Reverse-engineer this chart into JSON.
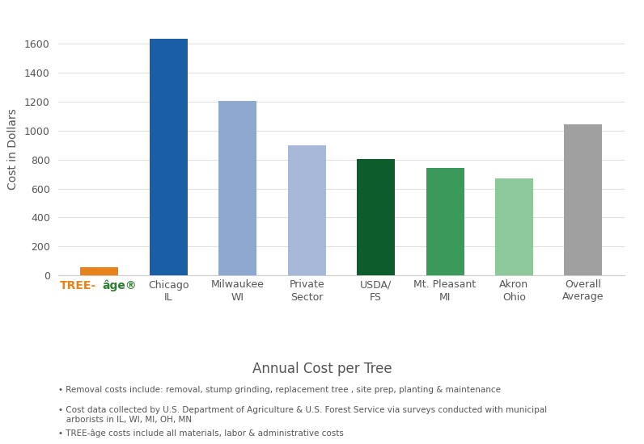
{
  "categories": [
    "TREE-âge®",
    "Chicago\nIL",
    "Milwaukee\nWI",
    "Private\nSector",
    "USDA/\nFS",
    "Mt. Pleasant\nMI",
    "Akron\nOhio",
    "Overall\nAverage"
  ],
  "values": [
    55,
    1635,
    1205,
    900,
    805,
    745,
    670,
    1045
  ],
  "bar_colors": [
    "#E8821A",
    "#1A5EA8",
    "#8FA8CF",
    "#A8B8D8",
    "#0D5C2C",
    "#3A9A5C",
    "#8DC89A",
    "#A0A0A0"
  ],
  "ylabel": "Cost in Dollars",
  "xlabel": "Annual Cost per Tree",
  "ylim": [
    0,
    1750
  ],
  "yticks": [
    0,
    200,
    400,
    600,
    800,
    1000,
    1200,
    1400,
    1600
  ],
  "background_color": "#FFFFFF",
  "plot_bg_color": "#FFFFFF",
  "footnote1": "• Removal costs include: removal, stump grinding, replacement tree , site prep, planting & maintenance",
  "footnote2": "• Cost data collected by U.S. Department of Agriculture & U.S. Forest Service via surveys conducted with municipal\n   arborists in IL, WI, MI, OH, MN",
  "footnote3": "• TREE-âge costs include all materials, labor & administrative costs",
  "treeage_color_tree": "#E8821A",
  "treeage_color_age": "#2E7D32",
  "grid_color": "#E0E0E0"
}
